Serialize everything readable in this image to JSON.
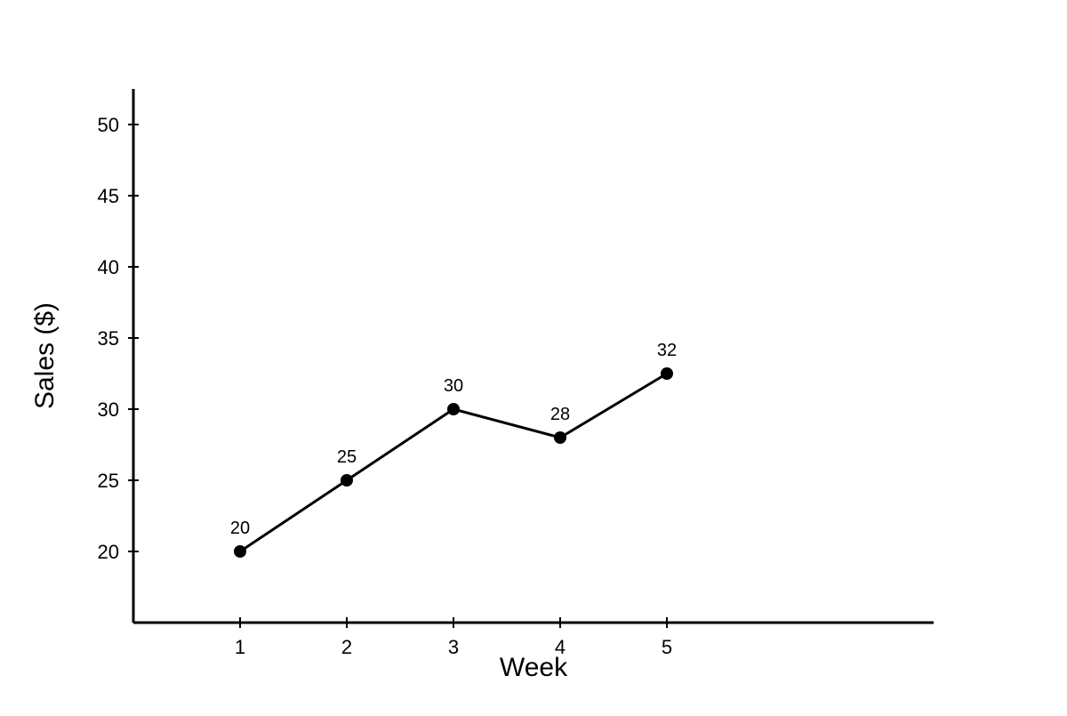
{
  "chart_data": {
    "type": "line",
    "title": "",
    "xlabel": "Week",
    "ylabel": "Sales ($)",
    "x": [
      1,
      2,
      3,
      4,
      5
    ],
    "xticks": [
      "1",
      "2",
      "3",
      "4",
      "5"
    ],
    "xlim": [
      0,
      7.5
    ],
    "ylim": [
      15,
      52.5
    ],
    "yticks": [
      20,
      25,
      30,
      35,
      40,
      45,
      50
    ],
    "grid": false,
    "legend": "none",
    "series": [
      {
        "values": [
          20,
          25,
          30,
          28,
          32.5
        ],
        "data_labels": [
          "20",
          "25",
          "30",
          "28",
          "32"
        ],
        "color": "#000000"
      }
    ]
  }
}
